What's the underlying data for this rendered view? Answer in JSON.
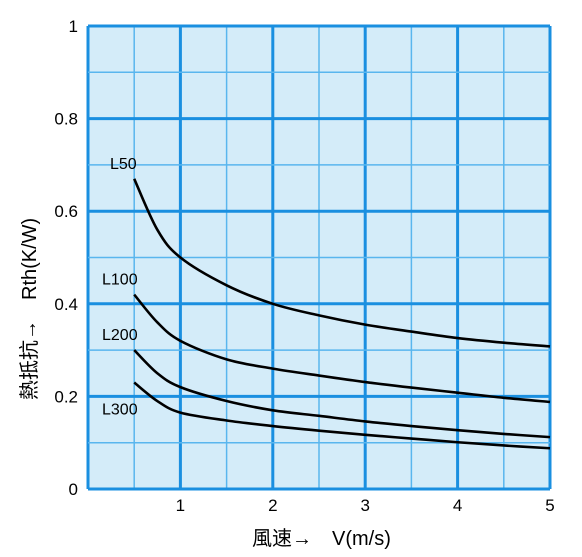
{
  "chart_data": {
    "type": "line",
    "title": "",
    "xlabel": "風速→　V(m/s)",
    "ylabel": "熱抵抗→　Rth(K/W)",
    "xlim": [
      0,
      5
    ],
    "ylim": [
      0,
      1
    ],
    "x_ticks": [
      "1",
      "2",
      "3",
      "4",
      "5"
    ],
    "x_origin_label": "0",
    "y_ticks": [
      "0.2",
      "0.4",
      "0.6",
      "0.8",
      "1"
    ],
    "grid": true,
    "legend": "none",
    "background_color": "#d4ecf9",
    "grid_major_color": "#1a8fe0",
    "grid_minor_color": "#59b6ee",
    "line_color": "#000000",
    "series": [
      {
        "name": "L50",
        "x": [
          0.5,
          0.75,
          1,
          1.5,
          2,
          2.5,
          3,
          3.5,
          4,
          4.5,
          5
        ],
        "values": [
          0.67,
          0.56,
          0.5,
          0.44,
          0.4,
          0.375,
          0.355,
          0.34,
          0.326,
          0.316,
          0.308
        ]
      },
      {
        "name": "L100",
        "x": [
          0.5,
          0.75,
          1,
          1.5,
          2,
          2.5,
          3,
          3.5,
          4,
          4.5,
          5
        ],
        "values": [
          0.42,
          0.36,
          0.32,
          0.28,
          0.26,
          0.245,
          0.231,
          0.219,
          0.208,
          0.197,
          0.188
        ]
      },
      {
        "name": "L200",
        "x": [
          0.5,
          0.75,
          1,
          1.5,
          2,
          2.5,
          3,
          3.5,
          4,
          4.5,
          5
        ],
        "values": [
          0.3,
          0.25,
          0.22,
          0.19,
          0.17,
          0.158,
          0.146,
          0.136,
          0.127,
          0.119,
          0.112
        ]
      },
      {
        "name": "L300",
        "x": [
          0.5,
          0.75,
          1,
          1.5,
          2,
          2.5,
          3,
          3.5,
          4,
          4.5,
          5
        ],
        "values": [
          0.23,
          0.19,
          0.165,
          0.148,
          0.136,
          0.126,
          0.117,
          0.109,
          0.101,
          0.094,
          0.088
        ]
      }
    ]
  }
}
